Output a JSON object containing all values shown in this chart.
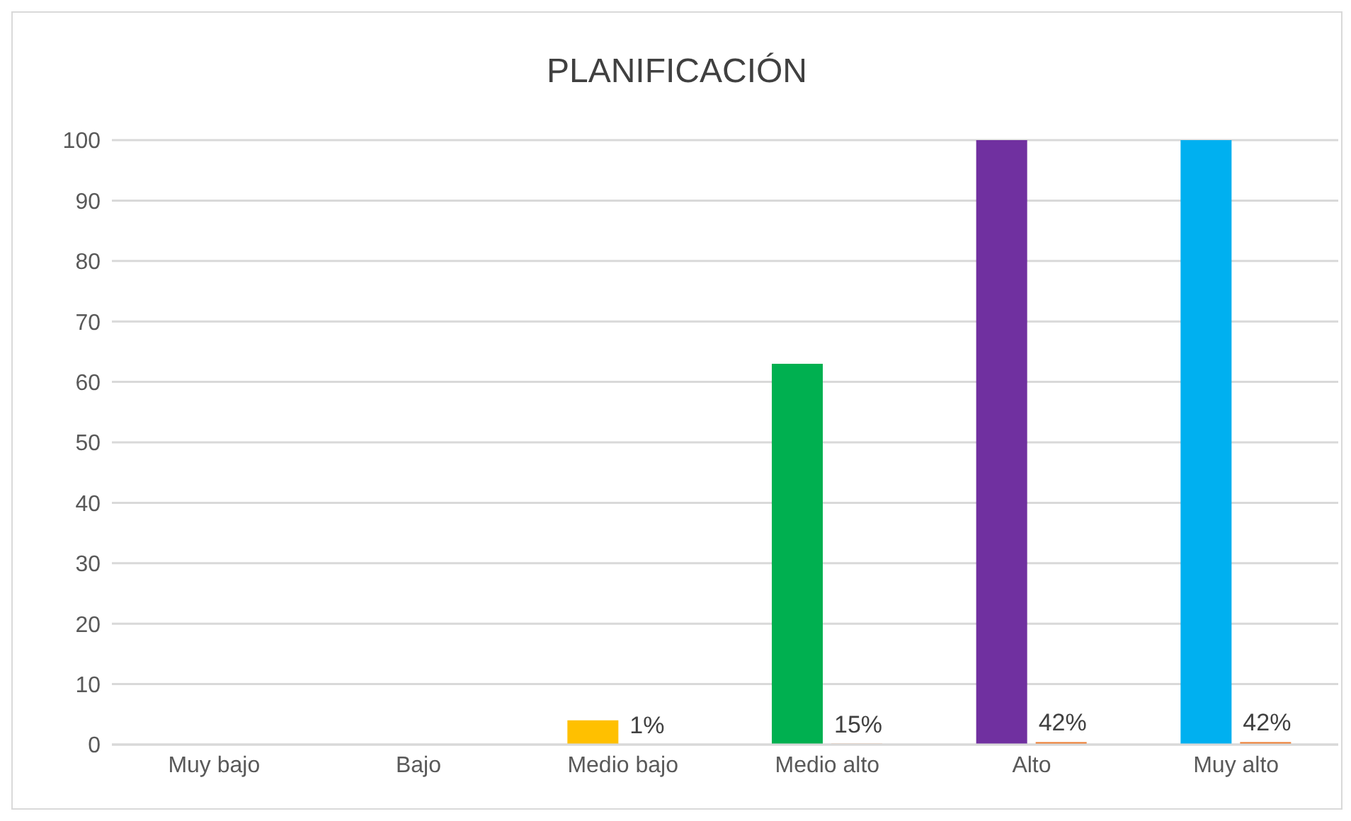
{
  "chart_data": {
    "type": "bar",
    "title": "PLANIFICACIÓN",
    "categories": [
      "Muy bajo",
      "Bajo",
      "Medio bajo",
      "Medio alto",
      "Alto",
      "Muy alto"
    ],
    "series": [
      {
        "colors": [
          "#4472c4",
          "#a5a5a5",
          "#ffc000",
          "#00b050",
          "#7030a0",
          "#00b0f0"
        ],
        "values": [
          0,
          0,
          4,
          63,
          100,
          100
        ]
      },
      {
        "color": "#ed7d31",
        "values": [
          null,
          null,
          0.01,
          0.15,
          0.42,
          0.42
        ],
        "value_labels": [
          null,
          null,
          "1%",
          "15%",
          "42%",
          "42%"
        ]
      }
    ],
    "ylim": [
      0,
      100
    ],
    "yticks": [
      0,
      10,
      20,
      30,
      40,
      50,
      60,
      70,
      80,
      90,
      100
    ],
    "grid": "y",
    "legend": false
  }
}
